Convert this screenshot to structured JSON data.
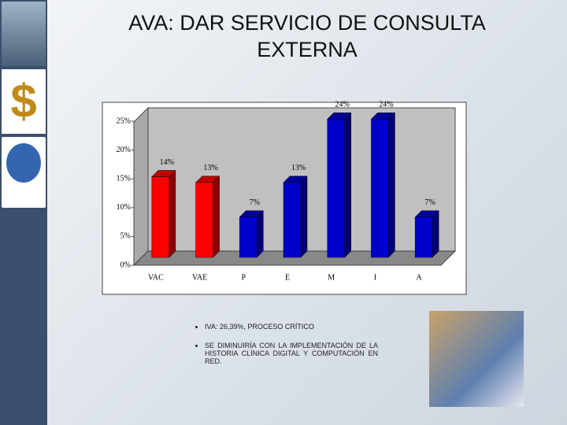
{
  "chart_data": {
    "type": "bar3d",
    "title": "AVA: DAR SERVICIO DE CONSULTA EXTERNA",
    "categories": [
      "VAC",
      "VAE",
      "P",
      "E",
      "M",
      "I",
      "A"
    ],
    "values": [
      14,
      13,
      7,
      13,
      24,
      24,
      7
    ],
    "value_labels": [
      "14%",
      "13%",
      "7%",
      "13%",
      "24%",
      "24%",
      "7%"
    ],
    "colors": [
      "#ff0000",
      "#ff0000",
      "#0000cc",
      "#0000cc",
      "#0000cc",
      "#0000cc",
      "#0000cc"
    ],
    "ylim": [
      0,
      28
    ],
    "yticks": [
      {
        "value": 0,
        "label": "0%"
      },
      {
        "value": 5,
        "label": "5%"
      },
      {
        "value": 10,
        "label": "10%"
      },
      {
        "value": 15,
        "label": "15%"
      },
      {
        "value": 20,
        "label": "20%"
      },
      {
        "value": 25,
        "label": "25%"
      }
    ],
    "grid": false
  },
  "bullets": [
    "IVA: 26,39%, PROCESO CRÍTICO",
    "SE DIMINUIRÍA CON LA IMPLEMENTACIÓN DE LA HISTORIA CLÍNICA DIGITAL Y COMPUTACIÓN EN RED."
  ]
}
